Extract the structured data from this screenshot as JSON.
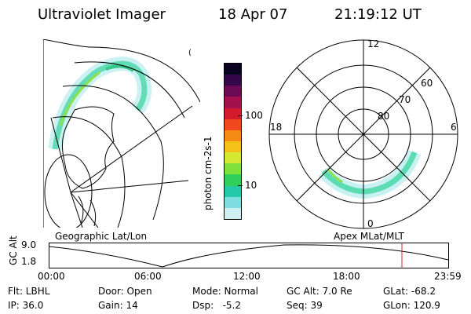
{
  "header": {
    "instrument": "Ultraviolet Imager",
    "date": "18 Apr 07",
    "time": "21:19:12 UT"
  },
  "left_map": {
    "caption": "Geographic Lat/Lon"
  },
  "right_map": {
    "caption": "Apex MLat/MLT",
    "mlt_labels": [
      "12",
      "18",
      "6",
      "0"
    ],
    "mlat_labels": [
      "60",
      "70",
      "80"
    ]
  },
  "colorbar": {
    "unit_label": "photon cm-2s-1",
    "ticks": [
      "100",
      "10"
    ],
    "colors": [
      "#0b0420",
      "#34064b",
      "#6b0a55",
      "#a2104e",
      "#d41a2c",
      "#f0471e",
      "#f58a14",
      "#f2c21b",
      "#d6e832",
      "#7ee038",
      "#2fcf5a",
      "#22c9a8",
      "#7fdde0",
      "#cdeff2"
    ]
  },
  "altitude_plot": {
    "ylabel": "GC Alt",
    "yticks": [
      "9.0",
      "1.8"
    ],
    "xticks": [
      "00:00",
      "06:00",
      "12:00",
      "18:00",
      "23:59"
    ],
    "current_marker_color": "#d22b2b"
  },
  "status": {
    "flt": "Flt: LBHL",
    "door": "Door: Open",
    "mode": "Mode: Normal",
    "gc_alt": "GC Alt: 7.0 Re",
    "glat": "GLat: -68.2",
    "ip": "IP: 36.0",
    "gain": "Gain: 14",
    "dsp": "Dsp:   -5.2",
    "seq": "Seq: 39",
    "glon": "GLon: 120.9"
  }
}
